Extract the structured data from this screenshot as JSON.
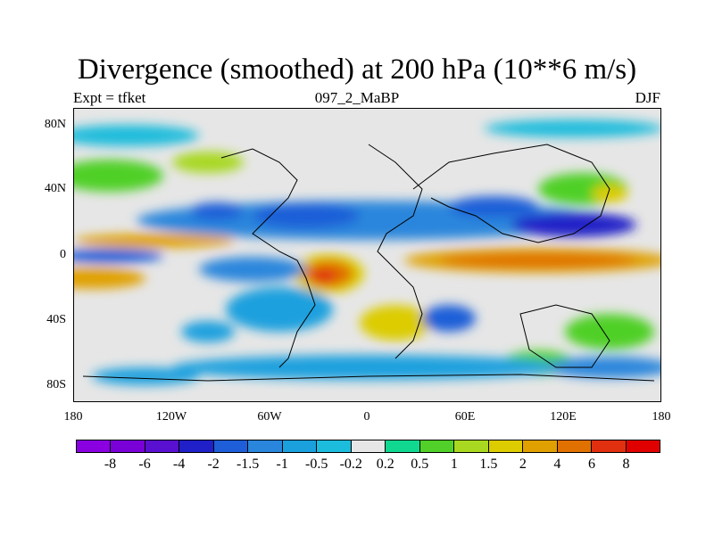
{
  "title": "Divergence (smoothed) at 200 hPa (10**6 m/s)",
  "subtitle_left": "Expt = tfket",
  "subtitle_center": "097_2_MaBP",
  "subtitle_right": "DJF",
  "map": {
    "projection": "cylindrical-equidistant",
    "lon_range": [
      -180,
      180
    ],
    "lat_range": [
      -90,
      90
    ],
    "background_color": "#e6e6e6",
    "x_tick_labels": [
      "180",
      "120W",
      "60W",
      "0",
      "60E",
      "120E",
      "180"
    ],
    "y_tick_labels": [
      "80N",
      "40N",
      "0",
      "40S",
      "80S"
    ]
  },
  "colorbar": {
    "colors": [
      "#8a00e0",
      "#7a00d8",
      "#5a10d0",
      "#2020c8",
      "#1e5ed8",
      "#2a86dc",
      "#1ba0de",
      "#1bbcdc",
      "#e6e6e6",
      "#10d890",
      "#50d028",
      "#a8d820",
      "#dccc00",
      "#e0a000",
      "#e07000",
      "#e03010",
      "#e00000"
    ],
    "labels": [
      "-8",
      "-6",
      "-4",
      "-2",
      "-1.5",
      "-1",
      "-0.5",
      "-0.2",
      "0.2",
      "0.5",
      "1",
      "1.5",
      "2",
      "4",
      "6",
      "8"
    ]
  }
}
